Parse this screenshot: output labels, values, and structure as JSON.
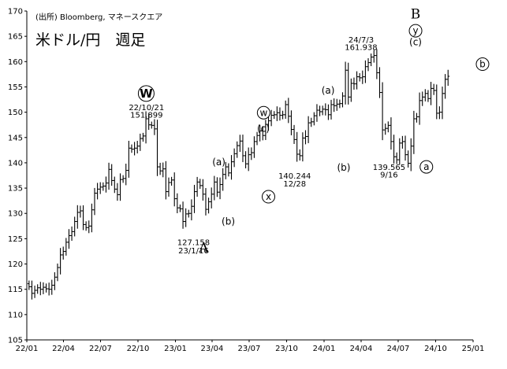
{
  "chart_data": {
    "type": "candlestick-ohlc",
    "source": "(出所) Bloomberg, マネースクエア",
    "title": "米ドル/円　週足",
    "xlabel": "",
    "ylabel": "",
    "ylim": [
      105,
      170
    ],
    "y_ticks": [
      105,
      110,
      115,
      120,
      125,
      130,
      135,
      140,
      145,
      150,
      155,
      160,
      165,
      170
    ],
    "x_ticks": [
      "22/01",
      "22/04",
      "22/07",
      "22/10",
      "23/01",
      "23/04",
      "23/07",
      "23/10",
      "24/01",
      "24/04",
      "24/07",
      "24/10",
      "25/01"
    ],
    "x_tick_dates": [
      "2022-01-01",
      "2022-04-01",
      "2022-07-01",
      "2022-10-01",
      "2023-01-01",
      "2023-04-01",
      "2023-07-01",
      "2023-10-01",
      "2024-01-01",
      "2024-04-01",
      "2024-07-01",
      "2024-10-01",
      "2025-01-01"
    ],
    "grid": false,
    "legend": "none",
    "colors": {
      "bars": "#000000",
      "background": "#ffffff"
    },
    "weekly_close": [
      [
        0,
        115.5
      ],
      [
        1,
        114.2
      ],
      [
        2,
        114.8
      ],
      [
        3,
        115.3
      ],
      [
        4,
        115.0
      ],
      [
        5,
        115.4
      ],
      [
        6,
        115.1
      ],
      [
        7,
        115.0
      ],
      [
        8,
        115.8
      ],
      [
        9,
        117.4
      ],
      [
        10,
        119.3
      ],
      [
        11,
        121.8
      ],
      [
        12,
        122.5
      ],
      [
        13,
        124.3
      ],
      [
        14,
        125.6
      ],
      [
        15,
        126.4
      ],
      [
        16,
        128.4
      ],
      [
        17,
        130.2
      ],
      [
        18,
        130.5
      ],
      [
        19,
        127.8
      ],
      [
        20,
        127.2
      ],
      [
        21,
        127.5
      ],
      [
        22,
        130.7
      ],
      [
        23,
        134.0
      ],
      [
        24,
        134.8
      ],
      [
        25,
        135.2
      ],
      [
        26,
        135.4
      ],
      [
        27,
        136.0
      ],
      [
        28,
        138.7
      ],
      [
        29,
        136.5
      ],
      [
        30,
        134.8
      ],
      [
        31,
        133.7
      ],
      [
        32,
        136.7
      ],
      [
        33,
        136.9
      ],
      [
        34,
        138.5
      ],
      [
        35,
        142.9
      ],
      [
        36,
        142.7
      ],
      [
        37,
        142.9
      ],
      [
        38,
        143.3
      ],
      [
        39,
        144.8
      ],
      [
        40,
        145.3
      ],
      [
        41,
        148.7
      ],
      [
        42,
        147.5
      ],
      [
        43,
        147.4
      ],
      [
        44,
        146.7
      ],
      [
        45,
        139.2
      ],
      [
        46,
        138.4
      ],
      [
        47,
        138.8
      ],
      [
        48,
        134.3
      ],
      [
        49,
        136.1
      ],
      [
        50,
        136.6
      ],
      [
        51,
        132.9
      ],
      [
        52,
        131.1
      ],
      [
        53,
        130.9
      ],
      [
        54,
        128.4
      ],
      [
        55,
        129.9
      ],
      [
        56,
        130.0
      ],
      [
        57,
        131.4
      ],
      [
        58,
        134.3
      ],
      [
        59,
        136.2
      ],
      [
        60,
        135.5
      ],
      [
        61,
        133.8
      ],
      [
        62,
        130.8
      ],
      [
        63,
        132.3
      ],
      [
        64,
        133.8
      ],
      [
        65,
        136.2
      ],
      [
        66,
        134.2
      ],
      [
        67,
        135.7
      ],
      [
        68,
        137.7
      ],
      [
        69,
        139.2
      ],
      [
        70,
        138.0
      ],
      [
        71,
        140.2
      ],
      [
        72,
        141.8
      ],
      [
        73,
        143.4
      ],
      [
        74,
        144.3
      ],
      [
        75,
        141.4
      ],
      [
        76,
        139.8
      ],
      [
        77,
        141.6
      ],
      [
        78,
        142.0
      ],
      [
        79,
        144.2
      ],
      [
        80,
        145.4
      ],
      [
        81,
        146.3
      ],
      [
        82,
        145.4
      ],
      [
        83,
        147.6
      ],
      [
        84,
        148.3
      ],
      [
        85,
        149.4
      ],
      [
        86,
        149.5
      ],
      [
        87,
        149.9
      ],
      [
        88,
        149.4
      ],
      [
        89,
        149.5
      ],
      [
        90,
        151.5
      ],
      [
        91,
        149.2
      ],
      [
        92,
        146.6
      ],
      [
        93,
        144.6
      ],
      [
        94,
        141.7
      ],
      [
        95,
        141.4
      ],
      [
        96,
        144.9
      ],
      [
        97,
        145.2
      ],
      [
        98,
        147.9
      ],
      [
        99,
        148.1
      ],
      [
        100,
        149.3
      ],
      [
        101,
        150.4
      ],
      [
        102,
        150.1
      ],
      [
        103,
        150.6
      ],
      [
        104,
        150.5
      ],
      [
        105,
        149.5
      ],
      [
        106,
        151.5
      ],
      [
        107,
        151.3
      ],
      [
        108,
        151.6
      ],
      [
        109,
        151.7
      ],
      [
        110,
        153.2
      ],
      [
        111,
        158.3
      ],
      [
        112,
        153.0
      ],
      [
        113,
        155.7
      ],
      [
        114,
        155.6
      ],
      [
        115,
        157.0
      ],
      [
        116,
        156.8
      ],
      [
        117,
        157.0
      ],
      [
        118,
        159.0
      ],
      [
        119,
        159.8
      ],
      [
        120,
        160.9
      ],
      [
        121,
        161.2
      ],
      [
        122,
        157.8
      ],
      [
        123,
        153.9
      ],
      [
        124,
        146.5
      ],
      [
        125,
        146.8
      ],
      [
        126,
        147.4
      ],
      [
        127,
        144.2
      ],
      [
        128,
        141.2
      ],
      [
        129,
        140.6
      ],
      [
        130,
        143.9
      ],
      [
        131,
        144.2
      ],
      [
        132,
        141.6
      ],
      [
        133,
        139.9
      ],
      [
        134,
        143.3
      ],
      [
        135,
        148.7
      ],
      [
        136,
        149.1
      ],
      [
        137,
        152.3
      ],
      [
        138,
        153.0
      ],
      [
        139,
        153.7
      ],
      [
        140,
        152.7
      ],
      [
        141,
        154.7
      ],
      [
        142,
        154.3
      ],
      [
        143,
        149.8
      ],
      [
        144,
        150.0
      ],
      [
        145,
        153.7
      ],
      [
        146,
        156.5
      ],
      [
        147,
        157.1
      ]
    ],
    "annotations": [
      {
        "text": "22/10/21",
        "x": 41.7,
        "y": 150.4
      },
      {
        "text": "151.899",
        "x": 41.7,
        "y": 148.9
      },
      {
        "text": "127.158",
        "x": 58.2,
        "y": 123.7
      },
      {
        "text": "23/1/16",
        "x": 58.2,
        "y": 122.1
      },
      {
        "text": "140.244",
        "x": 93.7,
        "y": 136.9
      },
      {
        "text": "12/28",
        "x": 93.7,
        "y": 135.3
      },
      {
        "text": "24/7/3",
        "x": 117.0,
        "y": 163.8
      },
      {
        "text": "161.938",
        "x": 117.0,
        "y": 162.3
      },
      {
        "text": "139.565",
        "x": 126.8,
        "y": 138.6
      },
      {
        "text": "9/16",
        "x": 126.8,
        "y": 137.1
      }
    ],
    "wave_labels": [
      {
        "text": "W",
        "x": 41.6,
        "y": 153.7,
        "style": "circle-large"
      },
      {
        "text": "A",
        "x": 61.8,
        "y": 122.3,
        "style": "large"
      },
      {
        "text": "(a)",
        "x": 67.1,
        "y": 139.5,
        "style": "small"
      },
      {
        "text": "(b)",
        "x": 70.4,
        "y": 127.8,
        "style": "small"
      },
      {
        "text": "w",
        "x": 82.8,
        "y": 149.9,
        "style": "circle-small"
      },
      {
        "text": "(c)",
        "x": 82.7,
        "y": 146.1,
        "style": "small"
      },
      {
        "text": "x",
        "x": 84.5,
        "y": 133.3,
        "style": "circle-small"
      },
      {
        "text": "(a)",
        "x": 105.4,
        "y": 153.7,
        "style": "small"
      },
      {
        "text": "(b)",
        "x": 110.9,
        "y": 138.4,
        "style": "small"
      },
      {
        "text": "B",
        "x": 136.1,
        "y": 168.5,
        "style": "large"
      },
      {
        "text": "y",
        "x": 136.1,
        "y": 166.1,
        "style": "circle-small"
      },
      {
        "text": "(c)",
        "x": 136.1,
        "y": 163.2,
        "style": "small"
      },
      {
        "text": "a",
        "x": 139.9,
        "y": 139.2,
        "style": "circle-small"
      },
      {
        "text": "b",
        "x": 159.6,
        "y": 159.5,
        "style": "circle-small"
      }
    ]
  }
}
